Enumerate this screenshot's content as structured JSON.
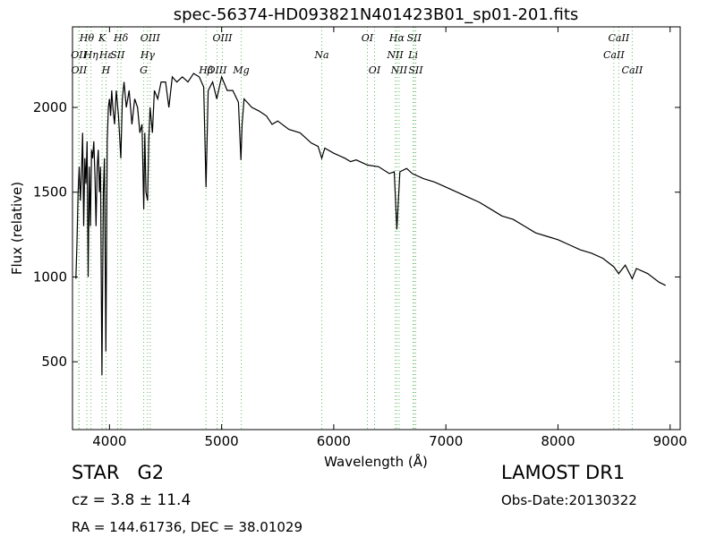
{
  "chart_data": {
    "type": "line",
    "title": "spec-56374-HD093821N401423B01_sp01-201.fits",
    "x_label": "Wavelength (Å)",
    "y_label": "Flux (relative)",
    "xlim": [
      3670,
      9090
    ],
    "ylim": [
      100,
      2475
    ],
    "xticks": [
      4000,
      5000,
      6000,
      7000,
      8000,
      9000
    ],
    "yticks": [
      500,
      1000,
      1500,
      2000
    ],
    "series": [
      {
        "color": "#000000",
        "x": [
          3700,
          3710,
          3720,
          3730,
          3740,
          3750,
          3760,
          3770,
          3780,
          3790,
          3800,
          3810,
          3820,
          3830,
          3840,
          3850,
          3860,
          3870,
          3880,
          3890,
          3900,
          3910,
          3920,
          3933,
          3945,
          3955,
          3968,
          3980,
          3990,
          4000,
          4010,
          4020,
          4030,
          4045,
          4060,
          4080,
          4101,
          4115,
          4130,
          4150,
          4175,
          4200,
          4225,
          4250,
          4271,
          4290,
          4305,
          4315,
          4325,
          4340,
          4350,
          4362,
          4383,
          4400,
          4430,
          4460,
          4500,
          4530,
          4560,
          4600,
          4650,
          4700,
          4750,
          4800,
          4840,
          4861,
          4880,
          4920,
          4957,
          5000,
          5050,
          5100,
          5150,
          5172,
          5183,
          5200,
          5270,
          5330,
          5400,
          5450,
          5500,
          5600,
          5700,
          5800,
          5860,
          5893,
          5920,
          6000,
          6100,
          6150,
          6200,
          6300,
          6400,
          6495,
          6540,
          6563,
          6590,
          6650,
          6700,
          6800,
          6900,
          7000,
          7100,
          7200,
          7300,
          7400,
          7500,
          7600,
          7700,
          7800,
          7900,
          8000,
          8100,
          8200,
          8300,
          8400,
          8498,
          8542,
          8600,
          8662,
          8700,
          8800,
          8900,
          8960
        ],
        "values": [
          990,
          1200,
          1500,
          1650,
          1450,
          1600,
          1850,
          1300,
          1700,
          1550,
          1800,
          1000,
          1650,
          1300,
          1750,
          1700,
          1800,
          1600,
          1300,
          1650,
          1750,
          1500,
          1650,
          420,
          1500,
          1700,
          560,
          1800,
          2000,
          2050,
          1950,
          2100,
          2000,
          1900,
          2100,
          1950,
          1700,
          2050,
          2150,
          2000,
          2100,
          1900,
          2050,
          2000,
          1850,
          1900,
          1400,
          1850,
          1500,
          1450,
          1800,
          2000,
          1850,
          2100,
          2050,
          2150,
          2150,
          2000,
          2180,
          2150,
          2180,
          2150,
          2200,
          2180,
          2120,
          1530,
          2100,
          2150,
          2050,
          2180,
          2100,
          2100,
          2030,
          1690,
          1900,
          2050,
          2000,
          1980,
          1950,
          1900,
          1920,
          1870,
          1850,
          1790,
          1770,
          1700,
          1760,
          1730,
          1700,
          1680,
          1690,
          1660,
          1650,
          1610,
          1620,
          1280,
          1620,
          1640,
          1610,
          1580,
          1560,
          1530,
          1500,
          1470,
          1440,
          1400,
          1360,
          1340,
          1300,
          1260,
          1240,
          1220,
          1190,
          1160,
          1140,
          1110,
          1060,
          1020,
          1070,
          990,
          1050,
          1020,
          970,
          950
        ]
      }
    ],
    "line_labels_top": [
      {
        "label": "Hθ",
        "x": 3798
      },
      {
        "label": "K",
        "x": 3934
      },
      {
        "label": "Hδ",
        "x": 4102
      },
      {
        "label": "OIII",
        "x": 4363
      },
      {
        "label": "OIII",
        "x": 5007
      },
      {
        "label": "OI",
        "x": 6300
      },
      {
        "label": "Hα",
        "x": 6563
      },
      {
        "label": "SII",
        "x": 6717
      },
      {
        "label": "CaII",
        "x": 8542
      }
    ],
    "line_labels_mid": [
      {
        "label": "OII",
        "x": 3727
      },
      {
        "label": "Hη",
        "x": 3835
      },
      {
        "label": "Hε",
        "x": 3970
      },
      {
        "label": "SII",
        "x": 4072
      },
      {
        "label": "Hγ",
        "x": 4340
      },
      {
        "label": "Na",
        "x": 5893
      },
      {
        "label": "NII",
        "x": 6548
      },
      {
        "label": "Li",
        "x": 6708
      },
      {
        "label": "CaII",
        "x": 8498
      }
    ],
    "line_labels_bottom": [
      {
        "label": "OII",
        "x": 3729
      },
      {
        "label": "H",
        "x": 3969
      },
      {
        "label": "G",
        "x": 4305
      },
      {
        "label": "Hβ",
        "x": 4861
      },
      {
        "label": "OIII",
        "x": 4959
      },
      {
        "label": "Mg",
        "x": 5175
      },
      {
        "label": "OI",
        "x": 6364
      },
      {
        "label": "NII",
        "x": 6583
      },
      {
        "label": "SII",
        "x": 6731
      },
      {
        "label": "CaII",
        "x": 8662
      }
    ]
  },
  "footer": {
    "object": "STAR   G2",
    "cz": "cz = 3.8 ± 11.4",
    "coords": "RA = 144.61736, DEC = 38.01029",
    "release": "LAMOST DR1",
    "date": "Obs-Date:20130322"
  }
}
